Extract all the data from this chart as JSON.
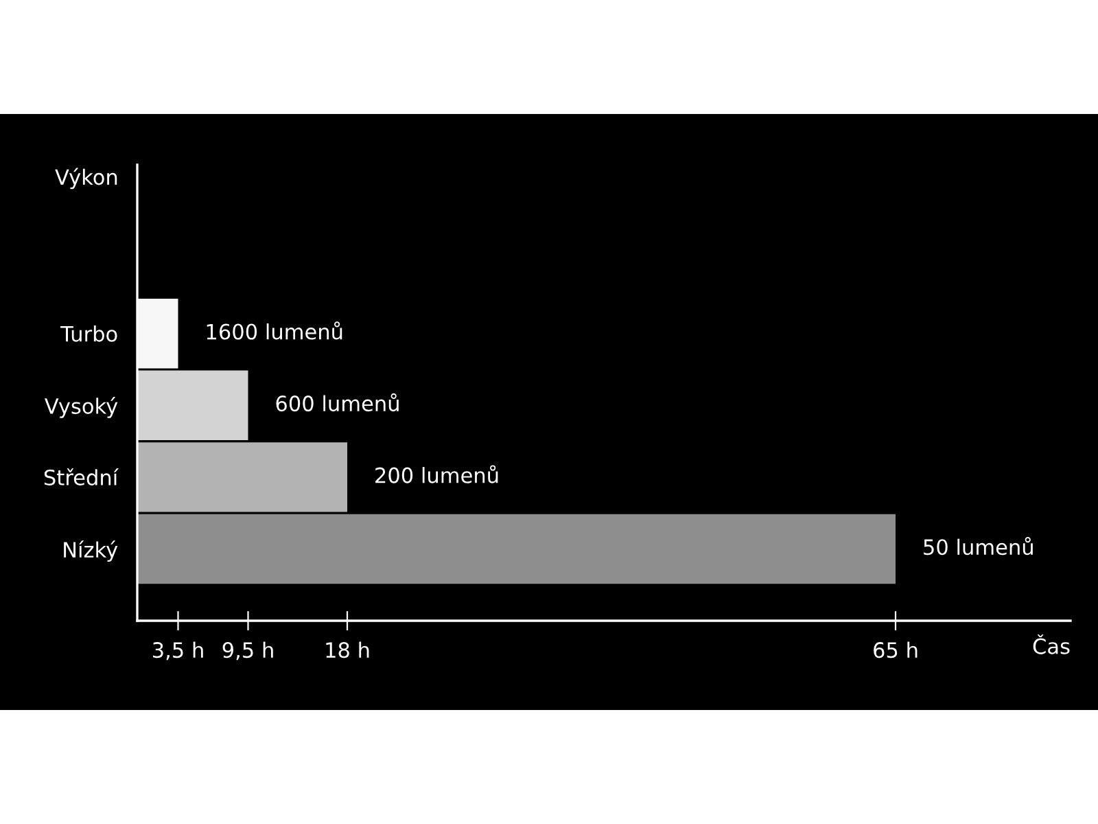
{
  "chart_data": {
    "type": "bar",
    "orientation": "horizontal",
    "xlabel": "Čas",
    "categories": [
      "Turbo",
      "Vysoký",
      "Střední",
      "Nízký"
    ],
    "values": [
      3.5,
      9.5,
      18,
      65
    ],
    "colors": [
      "#f7f7f7",
      "#d3d3d3",
      "#b3b3b3",
      "#8e8e8e"
    ],
    "annotations": [
      "Výkon",
      {
        "text": "1600 lumenů",
        "x": 3.5,
        "y": "Turbo"
      },
      {
        "text": "600 lumenů",
        "x": 9.5,
        "y": "Vysoký"
      },
      {
        "text": "200 lumenů",
        "x": 18,
        "y": "Střední"
      },
      {
        "text": "50 lumenů",
        "x": 65,
        "y": "Nízký"
      }
    ],
    "xlim": [
      0,
      80
    ],
    "xticks": [
      {
        "value": 3.5,
        "label": "3,5 h"
      },
      {
        "value": 9.5,
        "label": "9,5 h"
      },
      {
        "value": 18,
        "label": "18 h"
      },
      {
        "value": 65,
        "label": "65 h"
      }
    ],
    "grid": false,
    "legend": false
  }
}
